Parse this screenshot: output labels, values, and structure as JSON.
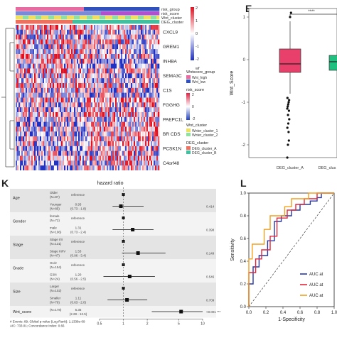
{
  "panels": {
    "left_top_letter": "",
    "E": "E",
    "K": "K",
    "L": "L"
  },
  "heatmap": {
    "annotation_rows": [
      "risk_group",
      "risk_score",
      "Wnt_cluster",
      "DEG_cluster"
    ],
    "genes": [
      "CXCL9",
      "GREM1",
      "INHBA",
      "SEMA3C",
      "C1S",
      "FGGHG",
      "PAEPC1L",
      "BR CDS",
      "PCSK1N",
      "C4orf48"
    ],
    "scale_ticks": [
      "2",
      "1",
      "0",
      "-1",
      "-2"
    ],
    "legend": {
      "wnt_group_title": "Wntscore_group",
      "wnt_group_items": [
        "Wnt_high",
        "Wnt_low"
      ],
      "risk_title": "risk_score",
      "risk_ticks": [
        "2",
        "0",
        "-2"
      ],
      "wnt_cluster_title": "Wnt_cluster",
      "wnt_cluster_items": [
        "Wnter_cluster_1",
        "Wnter_cluster_2"
      ],
      "deg_title": "DEG_cluster",
      "deg_items": [
        "DEG_cluster_A",
        "DEG_cluster_B"
      ],
      "misc_label": "wf"
    }
  },
  "boxplot": {
    "ylabel": "Wnt_Score",
    "yticks": [
      "1",
      "0",
      "-1",
      "-2"
    ],
    "categories": [
      "DEG_cluster_A",
      "DEG_clus"
    ],
    "sig": "****"
  },
  "forest": {
    "title": "hazard ratio",
    "rows": [
      {
        "var": "Age",
        "levels": [
          {
            "level": "Older",
            "n": "(N=87)",
            "ref": "reference",
            "hr": "",
            "ci": "",
            "p": ""
          },
          {
            "level": "Younger",
            "n": "(N=85)",
            "ref": "",
            "hr": "0.93",
            "ci": "(0.73 - 1.8)",
            "p": "0.414"
          }
        ]
      },
      {
        "var": "Gender",
        "levels": [
          {
            "level": "female",
            "n": "(N=72)",
            "ref": "reference",
            "hr": "",
            "ci": "",
            "p": ""
          },
          {
            "level": "male",
            "n": "(N=106)",
            "ref": "",
            "hr": "1.31",
            "ci": "(0.73 - 2.4)",
            "p": "0.398"
          }
        ]
      },
      {
        "var": "Stage",
        "levels": [
          {
            "level": "Stage I/II",
            "n": "(N=131)",
            "ref": "reference",
            "hr": "",
            "ci": "",
            "p": ""
          },
          {
            "level": "Stage III/IV",
            "n": "(N=47)",
            "ref": "",
            "hr": "1.53",
            "ci": "(0.96 - 3.4)",
            "p": "0.149"
          }
        ]
      },
      {
        "var": "Grade",
        "levels": [
          {
            "level": "G1/2",
            "n": "(N=154)",
            "ref": "reference",
            "hr": "",
            "ci": "",
            "p": ""
          },
          {
            "level": "G3/4",
            "n": "(N=24)",
            "ref": "",
            "hr": "1.20",
            "ci": "(0.56 - 2.5)",
            "p": "0.546"
          }
        ]
      },
      {
        "var": "Size",
        "levels": [
          {
            "level": "Larger",
            "n": "(N=102)",
            "ref": "reference",
            "hr": "",
            "ci": "",
            "p": ""
          },
          {
            "level": "Smaller",
            "n": "(N=76)",
            "ref": "",
            "hr": "1.11",
            "ci": "(0.63 - 2.0)",
            "p": "0.709"
          }
        ]
      },
      {
        "var": "Wnt_score",
        "levels": [
          {
            "level": "(N=178)",
            "n": "",
            "ref": "",
            "hr": "5.35",
            "ci": "(2.28 - 12.5)",
            "p": "<0.001 ***"
          }
        ]
      }
    ],
    "footer_1": "# Events: 89; Global p-value (Log-Rank): 1.1336e-09",
    "footer_2": "AIC: 733.01; Concordance Index: 0.66",
    "xticks": [
      "0.5",
      "1",
      "2",
      "5",
      "10"
    ]
  },
  "roc": {
    "ylabel": "Sensitivity",
    "xlabel": "1-Specificity",
    "ticks": [
      "1.0",
      "0.8",
      "0.6",
      "0.4",
      "0.2",
      "0.0"
    ],
    "xticks": [
      "0.0",
      "0.2",
      "0.4",
      "0.6",
      "0.8",
      "1.0"
    ],
    "legend": [
      "AUC at",
      "AUC at",
      "AUC at"
    ],
    "colors": [
      "#2838a8",
      "#e0283c",
      "#f0a020"
    ]
  },
  "chart_data": [
    {
      "type": "heatmap",
      "genes": [
        "CXCL9",
        "GREM1",
        "INHBA",
        "SEMA3C",
        "C1S",
        "FGGHG",
        "PAEPC1L",
        "BR CDS",
        "PCSK1N",
        "C4orf48"
      ],
      "color_scale": {
        "min": -2,
        "max": 2,
        "low": "#2030c0",
        "mid": "#ffffff",
        "high": "#e01020"
      }
    },
    {
      "type": "box",
      "categories": [
        "DEG_cluster_A",
        "DEG_cluster_B"
      ],
      "series": [
        {
          "name": "DEG_cluster_A",
          "q1": -0.3,
          "median": -0.1,
          "q3": 0.25,
          "whisker_low": -0.8,
          "whisker_high": 0.9,
          "color": "#e8406a"
        },
        {
          "name": "DEG_cluster_B",
          "q1": -0.25,
          "median": -0.05,
          "q3": 0.1,
          "color": "#20c080"
        }
      ],
      "ylim": [
        -2.3,
        1.2
      ],
      "outliers_A": [
        -1.0,
        -1.05,
        -1.1,
        -1.15,
        -1.2,
        -1.3,
        -1.4,
        -1.5,
        -1.6,
        -1.7,
        -1.9,
        -2.0,
        -2.3,
        1.0,
        1.1,
        -0.9,
        -0.95
      ]
    },
    {
      "type": "scatter",
      "title": "hazard ratio",
      "points": [
        {
          "label": "Younger",
          "hr": 0.93,
          "lo": 0.73,
          "hi": 1.8
        },
        {
          "label": "male",
          "hr": 1.31,
          "lo": 0.73,
          "hi": 2.4
        },
        {
          "label": "Stage III/IV",
          "hr": 1.53,
          "lo": 0.96,
          "hi": 3.4
        },
        {
          "label": "G3/4",
          "hr": 1.2,
          "lo": 0.56,
          "hi": 2.5
        },
        {
          "label": "Smaller",
          "hr": 1.11,
          "lo": 0.63,
          "hi": 2.0
        },
        {
          "label": "Wnt_score",
          "hr": 5.35,
          "lo": 2.28,
          "hi": 12.5
        }
      ],
      "xscale": "log",
      "xlim": [
        0.5,
        10
      ]
    },
    {
      "type": "line",
      "xlabel": "1-Specificity",
      "ylabel": "Sensitivity",
      "xlim": [
        0,
        1
      ],
      "ylim": [
        0,
        1
      ],
      "series": [
        {
          "name": "AUC at",
          "color": "#2838a8",
          "x": [
            0,
            0,
            0.05,
            0.05,
            0.12,
            0.12,
            0.22,
            0.22,
            0.3,
            0.3,
            0.38,
            0.38,
            0.5,
            0.5,
            0.6,
            0.6,
            0.72,
            0.72,
            0.8,
            0.8,
            0.85,
            0.85,
            1.0
          ],
          "y": [
            0,
            0.2,
            0.2,
            0.35,
            0.35,
            0.45,
            0.45,
            0.58,
            0.58,
            0.75,
            0.75,
            0.8,
            0.8,
            0.85,
            0.85,
            0.9,
            0.9,
            0.93,
            0.93,
            0.96,
            0.96,
            1.0,
            1.0
          ]
        },
        {
          "name": "AUC at",
          "color": "#e0283c",
          "x": [
            0,
            0,
            0.08,
            0.08,
            0.15,
            0.15,
            0.25,
            0.25,
            0.33,
            0.33,
            0.45,
            0.45,
            0.55,
            0.55,
            0.65,
            0.65,
            0.8,
            0.8,
            1.0
          ],
          "y": [
            0,
            0.3,
            0.3,
            0.42,
            0.42,
            0.5,
            0.5,
            0.62,
            0.62,
            0.78,
            0.78,
            0.85,
            0.85,
            0.9,
            0.9,
            0.95,
            0.95,
            1.0,
            1.0
          ]
        },
        {
          "name": "AUC at",
          "color": "#f0a020",
          "x": [
            0,
            0,
            0.04,
            0.04,
            0.18,
            0.18,
            0.25,
            0.25,
            0.42,
            0.42,
            0.5,
            0.5,
            0.7,
            0.7,
            1.0
          ],
          "y": [
            0,
            0.42,
            0.42,
            0.55,
            0.55,
            0.68,
            0.68,
            0.8,
            0.8,
            0.88,
            0.88,
            0.95,
            0.95,
            1.0,
            1.0
          ]
        }
      ]
    }
  ]
}
